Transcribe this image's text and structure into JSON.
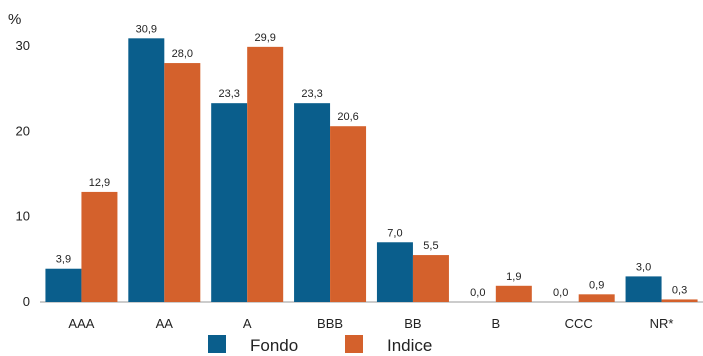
{
  "chart_data": {
    "type": "bar",
    "unit_label": "%",
    "categories": [
      "AAA",
      "AA",
      "A",
      "BBB",
      "BB",
      "B",
      "CCC",
      "NR*"
    ],
    "series": [
      {
        "name": "Fondo",
        "color": "#0a5e8c",
        "values": [
          3.9,
          30.9,
          23.3,
          23.3,
          7.0,
          0.0,
          0.0,
          3.0
        ],
        "labels": [
          "3,9",
          "30,9",
          "23,3",
          "23,3",
          "7,0",
          "0,0",
          "0,0",
          "3,0"
        ]
      },
      {
        "name": "Indice",
        "color": "#d4612c",
        "values": [
          12.9,
          28.0,
          29.9,
          20.6,
          5.5,
          1.9,
          0.9,
          0.3
        ],
        "labels": [
          "12,9",
          "28,0",
          "29,9",
          "20,6",
          "5,5",
          "1,9",
          "0,9",
          "0,3"
        ]
      }
    ],
    "yticks": [
      0,
      10,
      20,
      30
    ],
    "ylim": [
      0,
      33
    ],
    "grid": false,
    "legend": "bottom"
  }
}
